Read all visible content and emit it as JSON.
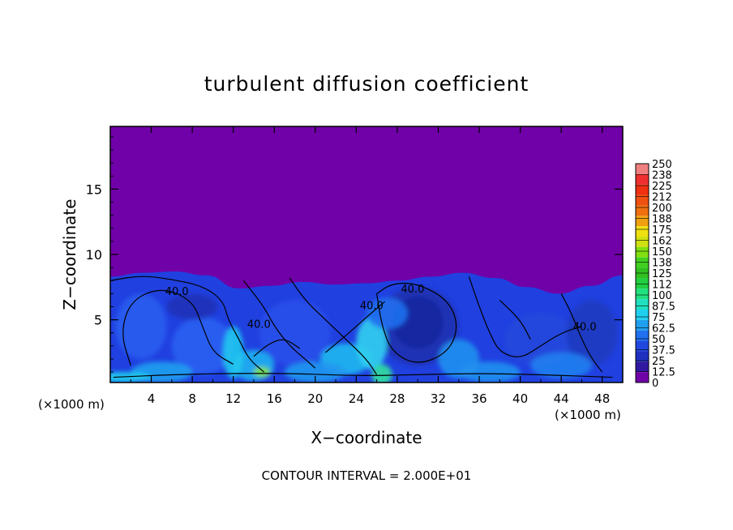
{
  "chart_data": {
    "type": "heatmap",
    "title": "turbulent diffusion coefficient",
    "xlabel": "X−coordinate",
    "ylabel": "Z−coordinate",
    "x_unit": "(×1000 m)",
    "x_unit_right": "(×1000 m)",
    "xlim": [
      0,
      50
    ],
    "ylim": [
      0.2,
      19.8
    ],
    "x_ticks": [
      4,
      8,
      12,
      16,
      20,
      24,
      28,
      32,
      36,
      40,
      44,
      48
    ],
    "y_ticks": [
      5,
      10,
      15
    ],
    "contour_interval_text": "CONTOUR INTERVAL = 2.000E+01",
    "contour_labels": [
      {
        "text": "40.0",
        "x": 6.5,
        "z": 6.9
      },
      {
        "text": "40.0",
        "x": 29.5,
        "z": 7.1
      },
      {
        "text": "40.0",
        "x": 25.5,
        "z": 5.8
      },
      {
        "text": "40.0",
        "x": 14.5,
        "z": 4.4
      },
      {
        "text": "40.0",
        "x": 46.3,
        "z": 4.2
      }
    ],
    "colorbar": {
      "ticks": [
        "250",
        "238",
        "225",
        "212",
        "200",
        "188",
        "175",
        "162",
        "150",
        "138",
        "125",
        "112",
        "100",
        "87.5",
        "75",
        "62.5",
        "50",
        "37.5",
        "25",
        "12.5",
        "0"
      ],
      "colors": [
        "#f08080",
        "#f03030",
        "#f03010",
        "#f05010",
        "#f07010",
        "#f0a010",
        "#f0e010",
        "#d0e010",
        "#80e010",
        "#40d020",
        "#30c020",
        "#20d040",
        "#20e080",
        "#20e0c0",
        "#20d0f0",
        "#20a0f0",
        "#2070f0",
        "#2048e0",
        "#2030c0",
        "#3018a0",
        "#7000a8"
      ]
    },
    "background_value_color": "#7000a8",
    "turbulent_layer_top_z": [
      8.3,
      8.6,
      8.7,
      8.4,
      7.4,
      7.6,
      7.9,
      7.7,
      7.8,
      8.0,
      8.3,
      8.6,
      8.2,
      7.5,
      7.0,
      7.6,
      8.4
    ]
  }
}
